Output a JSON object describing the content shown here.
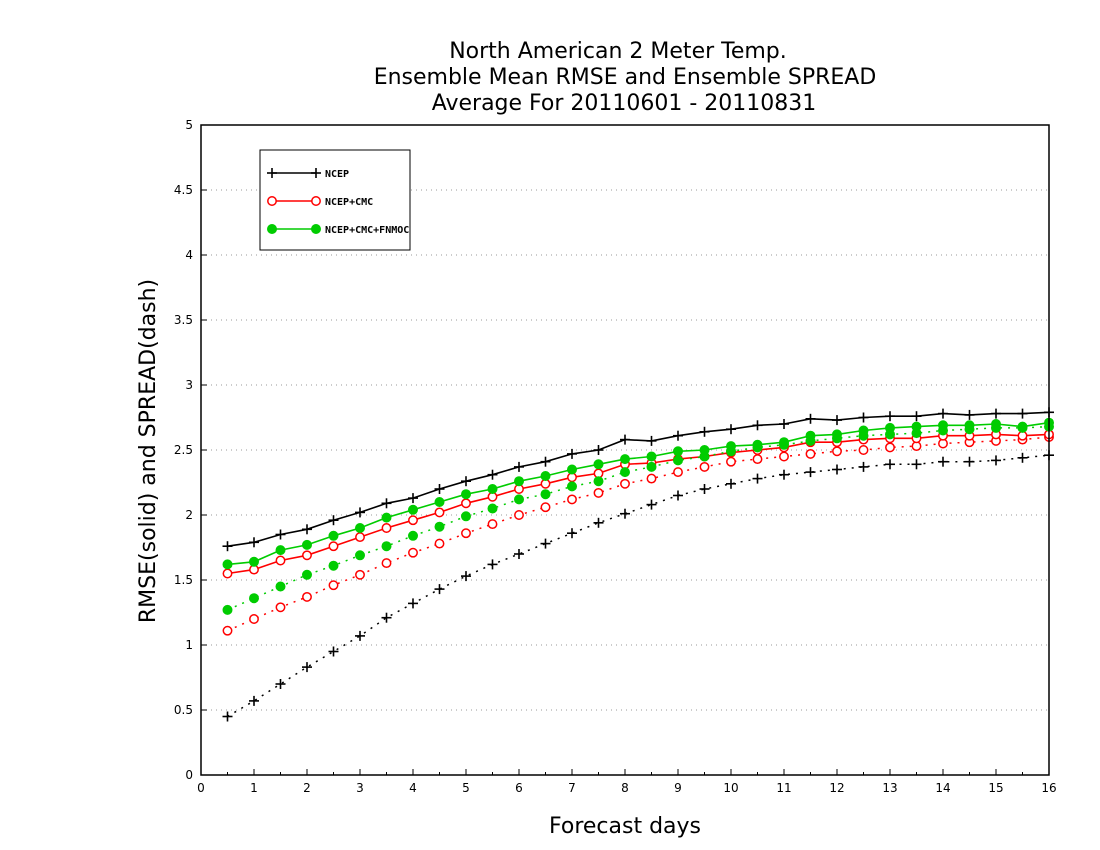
{
  "chart_data": {
    "type": "line",
    "title_lines": [
      "North American 2 Meter Temp.",
      "Ensemble Mean RMSE and Ensemble SPREAD",
      "Average For 20110601 - 20110831"
    ],
    "xlabel": "Forecast days",
    "ylabel": "RMSE(solid) and SPREAD(dash)",
    "xlim": [
      0,
      16
    ],
    "ylim": [
      0,
      5
    ],
    "xticks": [
      0,
      1,
      2,
      3,
      4,
      5,
      6,
      7,
      8,
      9,
      10,
      11,
      12,
      13,
      14,
      15,
      16
    ],
    "yticks": [
      0,
      0.5,
      1,
      1.5,
      2,
      2.5,
      3,
      3.5,
      4,
      4.5,
      5
    ],
    "ytick_labels": [
      "0",
      "0.5",
      "1",
      "1.5",
      "2",
      "2.5",
      "3",
      "3.5",
      "4",
      "4.5",
      "5"
    ],
    "grid": "horizontal dotted",
    "legend_position": "top-left",
    "x": [
      0.5,
      1.0,
      1.5,
      2.0,
      2.5,
      3.0,
      3.5,
      4.0,
      4.5,
      5.0,
      5.5,
      6.0,
      6.5,
      7.0,
      7.5,
      8.0,
      8.5,
      9.0,
      9.5,
      10.0,
      10.5,
      11.0,
      11.5,
      12.0,
      12.5,
      13.0,
      13.5,
      14.0,
      14.5,
      15.0,
      15.5,
      16.0
    ],
    "series": [
      {
        "name": "NCEP",
        "color": "#000000",
        "marker": "plus",
        "rmse": [
          1.76,
          1.79,
          1.85,
          1.89,
          1.96,
          2.02,
          2.09,
          2.13,
          2.2,
          2.26,
          2.31,
          2.37,
          2.41,
          2.47,
          2.5,
          2.58,
          2.57,
          2.61,
          2.64,
          2.66,
          2.69,
          2.7,
          2.74,
          2.73,
          2.75,
          2.76,
          2.76,
          2.78,
          2.77,
          2.78,
          2.78,
          2.79
        ],
        "spread": [
          0.45,
          0.57,
          0.7,
          0.83,
          0.95,
          1.07,
          1.21,
          1.32,
          1.43,
          1.53,
          1.62,
          1.7,
          1.78,
          1.86,
          1.94,
          2.01,
          2.08,
          2.15,
          2.2,
          2.24,
          2.28,
          2.31,
          2.33,
          2.35,
          2.37,
          2.39,
          2.39,
          2.41,
          2.41,
          2.42,
          2.44,
          2.46
        ]
      },
      {
        "name": "NCEP+CMC",
        "color": "#ff0000",
        "marker": "open-circle",
        "rmse": [
          1.55,
          1.58,
          1.65,
          1.69,
          1.76,
          1.83,
          1.9,
          1.96,
          2.02,
          2.09,
          2.14,
          2.2,
          2.24,
          2.29,
          2.32,
          2.39,
          2.4,
          2.43,
          2.45,
          2.48,
          2.5,
          2.52,
          2.56,
          2.56,
          2.58,
          2.59,
          2.59,
          2.61,
          2.61,
          2.62,
          2.61,
          2.62
        ],
        "spread": [
          1.11,
          1.2,
          1.29,
          1.37,
          1.46,
          1.54,
          1.63,
          1.71,
          1.78,
          1.86,
          1.93,
          2.0,
          2.06,
          2.12,
          2.17,
          2.24,
          2.28,
          2.33,
          2.37,
          2.41,
          2.43,
          2.45,
          2.47,
          2.49,
          2.5,
          2.52,
          2.53,
          2.55,
          2.56,
          2.57,
          2.58,
          2.6
        ]
      },
      {
        "name": "NCEP+CMC+FNMOC",
        "color": "#00cc00",
        "marker": "filled-circle",
        "rmse": [
          1.62,
          1.64,
          1.73,
          1.77,
          1.84,
          1.9,
          1.98,
          2.04,
          2.1,
          2.16,
          2.2,
          2.26,
          2.3,
          2.35,
          2.39,
          2.43,
          2.45,
          2.49,
          2.5,
          2.53,
          2.54,
          2.56,
          2.61,
          2.62,
          2.65,
          2.67,
          2.68,
          2.69,
          2.69,
          2.7,
          2.68,
          2.71
        ],
        "spread": [
          1.27,
          1.36,
          1.45,
          1.54,
          1.61,
          1.69,
          1.76,
          1.84,
          1.91,
          1.99,
          2.05,
          2.12,
          2.16,
          2.22,
          2.26,
          2.33,
          2.37,
          2.42,
          2.45,
          2.49,
          2.52,
          2.54,
          2.57,
          2.59,
          2.61,
          2.62,
          2.63,
          2.65,
          2.66,
          2.67,
          2.67,
          2.68
        ]
      }
    ]
  }
}
